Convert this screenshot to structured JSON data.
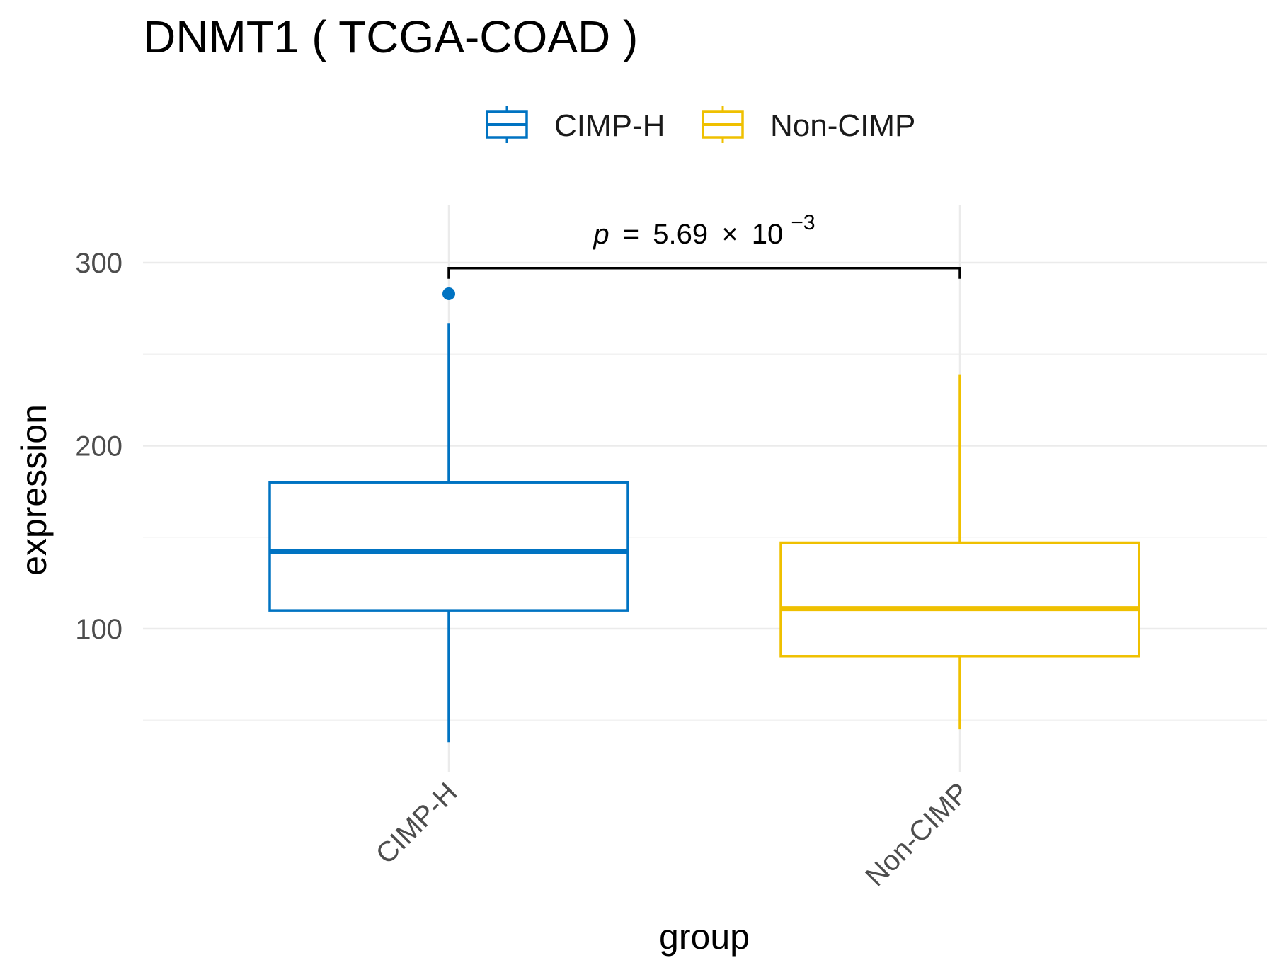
{
  "chart_data": {
    "type": "boxplot",
    "title": "DNMT1 ( TCGA-COAD )",
    "xlabel": "group",
    "ylabel": "expression",
    "categories": [
      "CIMP-H",
      "Non-CIMP"
    ],
    "y_ticks": [
      100,
      200,
      300
    ],
    "ylim": [
      20,
      330
    ],
    "legend": {
      "position": "top",
      "entries": [
        "CIMP-H",
        "Non-CIMP"
      ]
    },
    "series": [
      {
        "name": "CIMP-H",
        "color": "#0073C2",
        "whisker_low": 38,
        "q1": 110,
        "median": 142,
        "q3": 180,
        "whisker_high": 267,
        "outliers": [
          283
        ]
      },
      {
        "name": "Non-CIMP",
        "color": "#EFC000",
        "whisker_low": 45,
        "q1": 85,
        "median": 111,
        "q3": 147,
        "whisker_high": 239,
        "outliers": []
      }
    ],
    "comparison": {
      "groups": [
        "CIMP-H",
        "Non-CIMP"
      ],
      "p_label": "p",
      "p_equals": "=",
      "p_mantissa": "5.69",
      "p_times": "×",
      "p_base": "10",
      "p_exponent": "−3"
    }
  }
}
